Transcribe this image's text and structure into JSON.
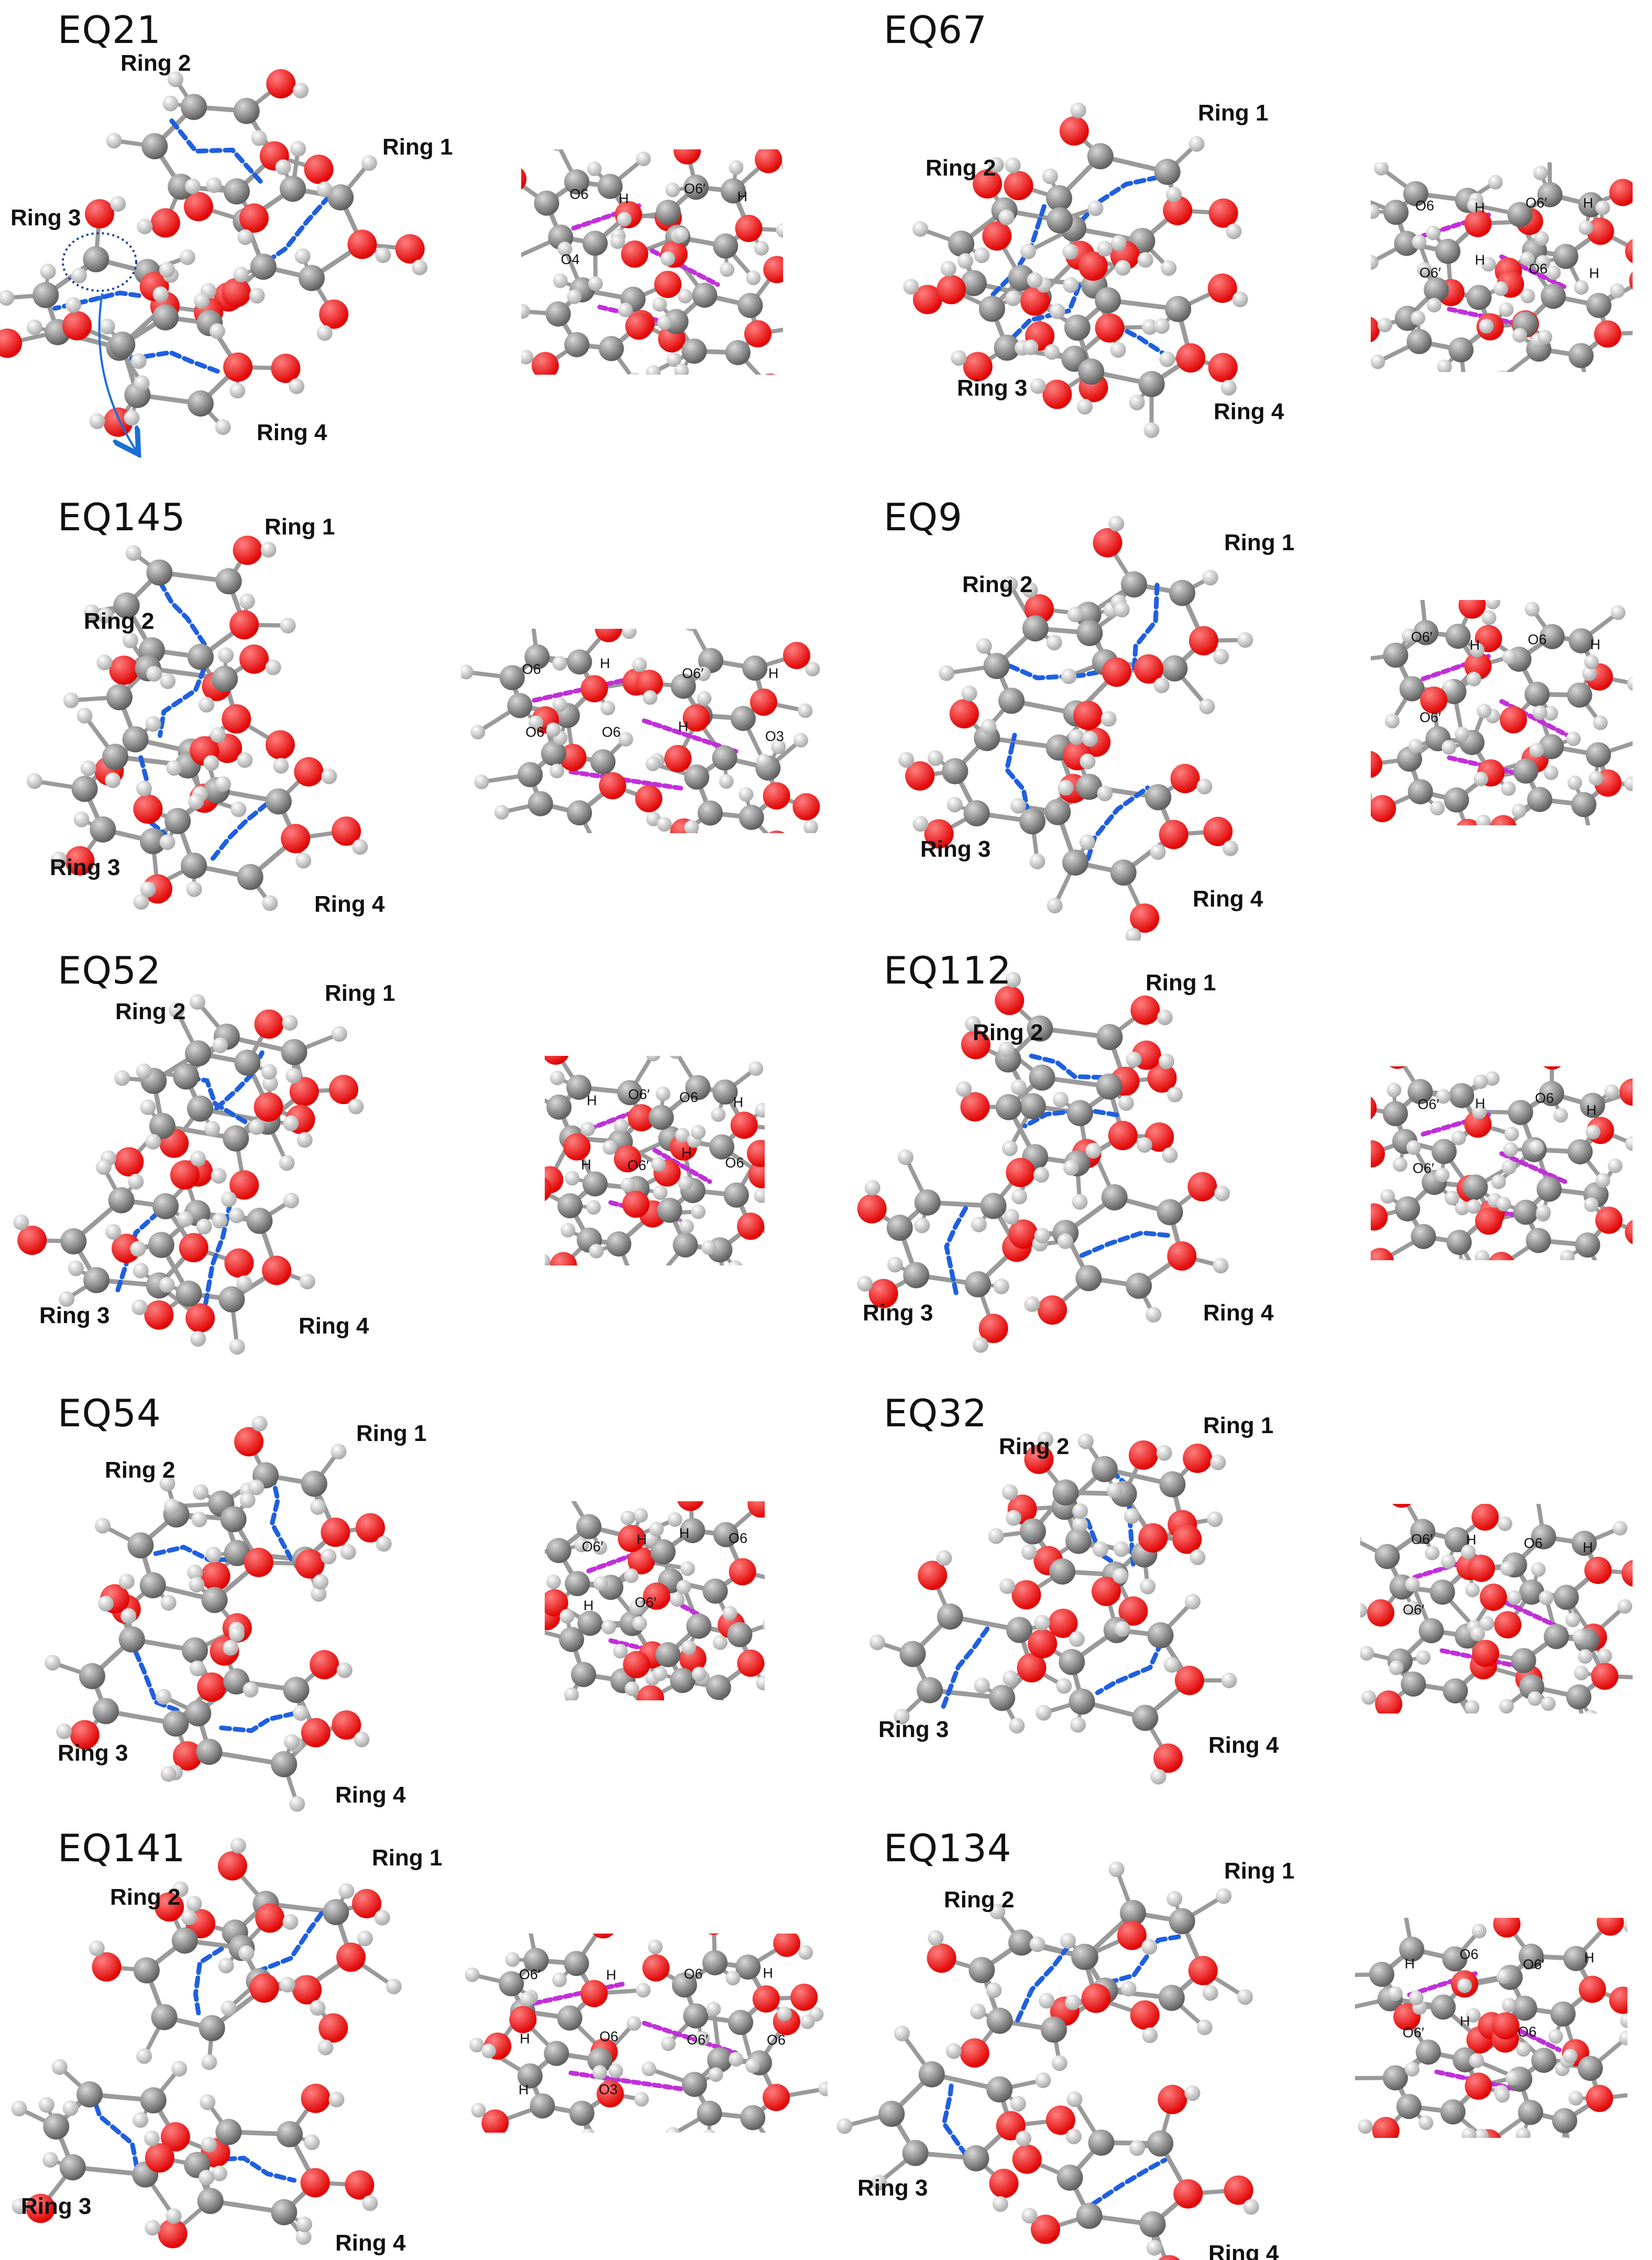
{
  "ring_labels": [
    "Ring 1",
    "Ring 2",
    "Ring 3",
    "Ring 4"
  ],
  "colors": {
    "oxygen": "#e00000",
    "carbon": "#8a8a8a",
    "hydrogen": "#e6e6e6",
    "bond": "#9a9a9a",
    "backbone_hbond": "#1f5fe0",
    "inter_hbond": "#c030d8",
    "highlight_ellipse": "#1a3fa0",
    "arrow": "#1a6fd8"
  },
  "panels": [
    {
      "id": "EQ21",
      "title": "EQ21",
      "inset_labels": [
        "O6",
        "H",
        "O6′",
        "H",
        "O4"
      ]
    },
    {
      "id": "EQ67",
      "title": "EQ67",
      "inset_labels": [
        "O6",
        "H",
        "O6′",
        "H",
        "O6′",
        "H",
        "O6",
        "H"
      ]
    },
    {
      "id": "EQ145",
      "title": "EQ145",
      "inset_labels": [
        "O6",
        "H",
        "O6′",
        "H",
        "O6′",
        "O6",
        "H",
        "O3"
      ]
    },
    {
      "id": "EQ9",
      "title": "EQ9",
      "inset_labels": [
        "O6′",
        "H",
        "O6",
        "H",
        "O6′"
      ]
    },
    {
      "id": "EQ52",
      "title": "EQ52",
      "inset_labels": [
        "H",
        "O6′",
        "O6",
        "H",
        "H",
        "O6′",
        "H",
        "O6"
      ]
    },
    {
      "id": "EQ112",
      "title": "EQ112",
      "inset_labels": [
        "O6′",
        "H",
        "O6",
        "H",
        "O6′"
      ]
    },
    {
      "id": "EQ54",
      "title": "EQ54",
      "inset_labels": [
        "O6′",
        "H",
        "H",
        "O6",
        "H",
        "O6′"
      ]
    },
    {
      "id": "EQ32",
      "title": "EQ32",
      "inset_labels": [
        "O6′",
        "H",
        "O6",
        "H",
        "O6′"
      ]
    },
    {
      "id": "EQ141",
      "title": "EQ141",
      "inset_labels": [
        "O6′",
        "H",
        "O6",
        "H",
        "H",
        "O6",
        "O6′",
        "O6",
        "H",
        "O3"
      ]
    },
    {
      "id": "EQ134",
      "title": "EQ134",
      "inset_labels": [
        "H",
        "O6",
        "O6′",
        "H",
        "O6′",
        "H",
        "O6"
      ]
    }
  ]
}
